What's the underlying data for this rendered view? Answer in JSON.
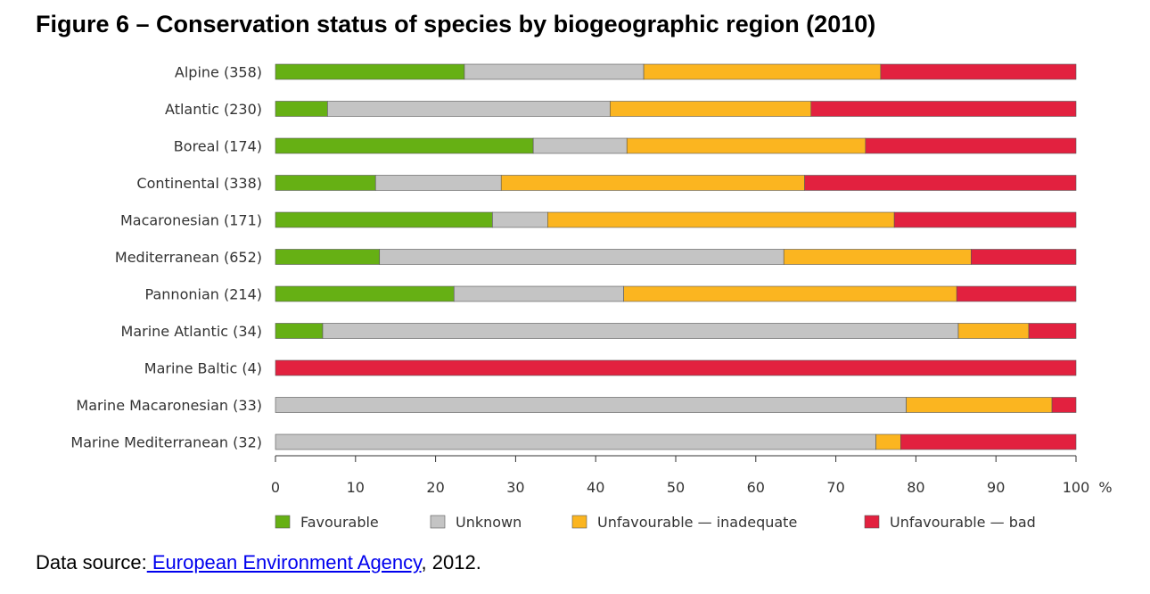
{
  "chart_data": {
    "type": "bar",
    "orientation": "horizontal",
    "stacked": true,
    "title": "Figure 6 – Conservation status of species by biogeographic region (2010)",
    "categories": [
      "Alpine (358)",
      "Atlantic (230)",
      "Boreal (174)",
      "Continental (338)",
      "Macaronesian (171)",
      "Mediterranean (652)",
      "Pannonian (214)",
      "Marine Atlantic (34)",
      "Marine Baltic (4)",
      "Marine Macaronesian (33)",
      "Marine Mediterranean (32)"
    ],
    "series": [
      {
        "name": "Favourable",
        "color": "#66b014",
        "values": [
          23.6,
          6.5,
          32.2,
          12.5,
          27.1,
          13.0,
          22.3,
          5.9,
          0,
          0,
          0
        ]
      },
      {
        "name": "Unknown",
        "color": "#c4c4c4",
        "values": [
          22.4,
          35.3,
          11.7,
          15.7,
          6.9,
          50.5,
          21.2,
          79.4,
          0,
          78.8,
          75.0
        ]
      },
      {
        "name": "Unfavourable — inadequate",
        "color": "#fbb520",
        "values": [
          29.6,
          25.1,
          29.8,
          37.9,
          43.3,
          23.4,
          41.6,
          8.8,
          0,
          18.2,
          3.1
        ]
      },
      {
        "name": "Unfavourable — bad",
        "color": "#e2213f",
        "values": [
          24.4,
          33.1,
          26.3,
          33.9,
          22.7,
          13.1,
          14.9,
          5.9,
          100,
          3.0,
          21.9
        ]
      }
    ],
    "xlim": [
      0,
      100
    ],
    "xticks": [
      "0",
      "10",
      "20",
      "30",
      "40",
      "50",
      "60",
      "70",
      "80",
      "90",
      "100"
    ],
    "xunit": "%",
    "grid": false,
    "legend": "bottom"
  },
  "source": {
    "prefix": "Data source:",
    "link": " European Environment Agency",
    "suffix": ", 2012."
  }
}
